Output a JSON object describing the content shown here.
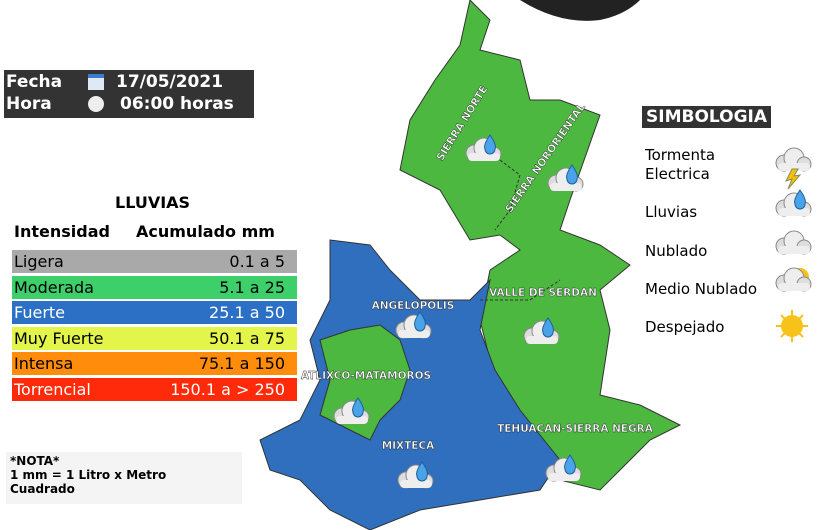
{
  "header": {
    "date_label": "Fecha",
    "date": "17/05/2021",
    "time_label": "Hora",
    "time": "06:00 horas"
  },
  "rain_table": {
    "title": "LLUVIAS",
    "columns": [
      "Intensidad",
      "Acumulado mm"
    ],
    "rows": [
      {
        "label": "Ligera",
        "range": "0.1 a 5",
        "color": "#a9a9a9"
      },
      {
        "label": "Moderada",
        "range": "5.1 a 25",
        "color": "#3ccf6a"
      },
      {
        "label": "Fuerte",
        "range": "25.1 a 50",
        "color": "#2b70c4"
      },
      {
        "label": "Muy Fuerte",
        "range": "50.1 a 75",
        "color": "#e3f54a"
      },
      {
        "label": "Intensa",
        "range": "75.1 a 150",
        "color": "#ff8c0a"
      },
      {
        "label": "Torrencial",
        "range": "150.1 a > 250",
        "color": "#ff2a0a"
      }
    ]
  },
  "note": {
    "title": "*NOTA*",
    "text": "1 mm = 1 Litro x Metro Cuadrado"
  },
  "legend": {
    "title": "SIMBOLOGIA",
    "items": [
      "Tormenta Electrica",
      "Lluvias",
      "Nublado",
      "Medio Nublado",
      "Despejado"
    ]
  },
  "regions": [
    {
      "label": "SIERRA NORTE",
      "fill": "#4cb840"
    },
    {
      "label": "SIERRA NORORIENTAL",
      "fill": "#4cb840"
    },
    {
      "label": "VALLE DE SERDAN",
      "fill": "#4cb840"
    },
    {
      "label": "ANGELOPOLIS",
      "fill": "#2f6fbe"
    },
    {
      "label": "ATLIXCO-MATAMOROS",
      "fill": "#4cb840"
    },
    {
      "label": "MIXTECA",
      "fill": "#2f6fbe"
    },
    {
      "label": "TEHUACAN-SIERRA NEGRA",
      "fill": "#4cb840"
    }
  ]
}
